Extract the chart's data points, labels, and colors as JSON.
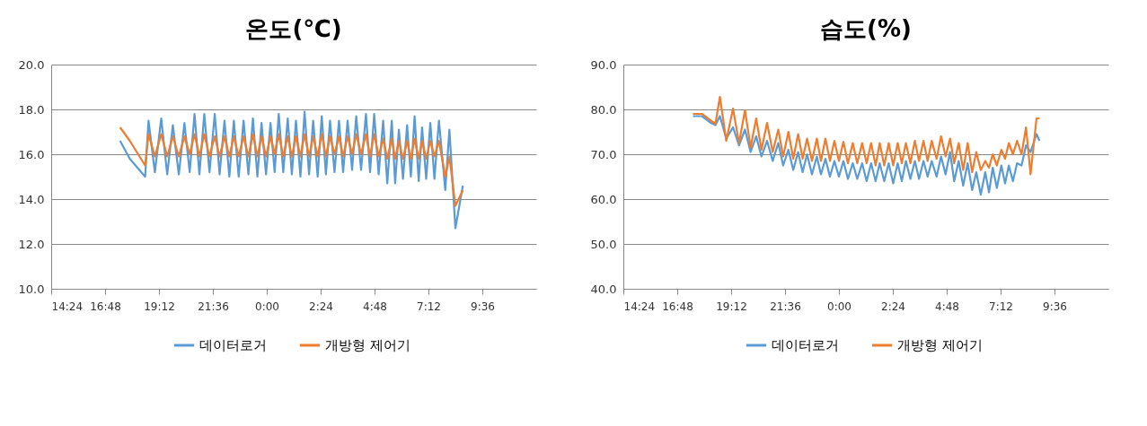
{
  "chart_data": [
    {
      "type": "line",
      "title": "온도(℃)",
      "x": [
        "2000-01-01T17:28",
        "2000-01-01T17:54",
        "2000-01-01T18:35",
        "2000-01-01T18:44",
        "2000-01-01T19:01",
        "2000-01-01T19:18",
        "2000-01-01T19:34",
        "2000-01-01T19:49",
        "2000-01-01T20:05",
        "2000-01-01T20:20",
        "2000-01-01T20:34",
        "2000-01-01T20:47",
        "2000-01-01T21:00",
        "2000-01-01T21:13",
        "2000-01-01T21:27",
        "2000-01-01T21:41",
        "2000-01-01T21:54",
        "2000-01-01T22:07",
        "2000-01-01T22:20",
        "2000-01-01T22:32",
        "2000-01-01T22:45",
        "2000-01-01T22:58",
        "2000-01-01T23:11",
        "2000-01-01T23:23",
        "2000-01-01T23:35",
        "2000-01-01T23:46",
        "2000-01-01T23:58",
        "2000-01-02T00:10",
        "2000-01-02T00:21",
        "2000-01-02T00:32",
        "2000-01-02T00:44",
        "2000-01-02T00:56",
        "2000-01-02T01:07",
        "2000-01-02T01:18",
        "2000-01-02T01:30",
        "2000-01-02T01:41",
        "2000-01-02T01:53",
        "2000-01-02T02:04",
        "2000-01-02T02:16",
        "2000-01-02T02:27",
        "2000-01-02T02:38",
        "2000-01-02T02:49",
        "2000-01-02T03:01",
        "2000-01-02T03:13",
        "2000-01-02T03:24",
        "2000-01-02T03:36",
        "2000-01-02T03:48",
        "2000-01-02T03:59",
        "2000-01-02T04:12",
        "2000-01-02T04:25",
        "2000-01-02T04:36",
        "2000-01-02T04:47",
        "2000-01-02T04:59",
        "2000-01-02T05:11",
        "2000-01-02T05:22",
        "2000-01-02T05:34",
        "2000-01-02T05:43",
        "2000-01-02T05:53",
        "2000-01-02T06:04",
        "2000-01-02T06:15",
        "2000-01-02T06:25",
        "2000-01-02T06:35",
        "2000-01-02T06:46",
        "2000-01-02T06:55",
        "2000-01-02T07:06",
        "2000-01-02T07:17",
        "2000-01-02T07:28",
        "2000-01-02T07:40",
        "2000-01-02T07:57",
        "2000-01-02T08:08",
        "2000-01-02T08:24",
        "2000-01-02T08:44"
      ],
      "series": [
        {
          "name": "데이터로거",
          "color": "#5b9bd5",
          "values": [
            16.6,
            15.8,
            15.0,
            17.5,
            15.2,
            17.6,
            15.1,
            17.3,
            15.1,
            17.4,
            15.2,
            17.8,
            15.1,
            17.8,
            15.2,
            17.8,
            15.1,
            17.5,
            15.0,
            17.5,
            15.0,
            17.5,
            15.1,
            17.6,
            15.0,
            17.4,
            15.1,
            17.4,
            15.2,
            17.8,
            15.2,
            17.6,
            15.1,
            17.5,
            15.0,
            17.9,
            15.1,
            17.5,
            15.0,
            17.7,
            15.1,
            17.5,
            15.2,
            17.5,
            15.2,
            17.5,
            15.3,
            17.7,
            15.3,
            17.8,
            15.2,
            17.8,
            15.1,
            17.5,
            14.7,
            17.5,
            14.7,
            17.1,
            14.9,
            17.3,
            15.0,
            17.7,
            14.8,
            17.2,
            14.9,
            17.4,
            14.9,
            17.5,
            14.4,
            17.1,
            12.7,
            14.6
          ]
        },
        {
          "name": "개방형 제어기",
          "color": "#ed7d31",
          "values": [
            17.2,
            16.6,
            15.5,
            16.9,
            15.9,
            16.9,
            15.9,
            16.8,
            15.9,
            16.8,
            16.0,
            16.9,
            15.9,
            16.9,
            15.9,
            16.8,
            15.9,
            16.8,
            15.9,
            16.8,
            15.9,
            16.8,
            15.9,
            16.9,
            15.9,
            16.8,
            15.9,
            16.8,
            16.0,
            16.9,
            15.9,
            16.8,
            15.9,
            16.8,
            15.9,
            16.9,
            15.9,
            16.8,
            15.9,
            16.9,
            15.9,
            16.8,
            16.0,
            16.8,
            15.9,
            16.8,
            16.0,
            16.9,
            16.0,
            16.9,
            15.9,
            16.9,
            15.9,
            16.7,
            15.8,
            16.7,
            15.8,
            16.6,
            15.8,
            16.6,
            15.8,
            16.7,
            15.8,
            16.6,
            15.8,
            16.6,
            15.9,
            16.6,
            15.0,
            15.9,
            13.7,
            14.4
          ]
        }
      ],
      "xlim": [
        "2000-01-01T14:24",
        "2000-01-02T12:00"
      ],
      "xticks": [
        {
          "value": "2000-01-01T14:24",
          "label": "14:24"
        },
        {
          "value": "2000-01-01T16:48",
          "label": "16:48"
        },
        {
          "value": "2000-01-01T19:12",
          "label": "19:12"
        },
        {
          "value": "2000-01-01T21:36",
          "label": "21:36"
        },
        {
          "value": "2000-01-02T00:00",
          "label": "0:00"
        },
        {
          "value": "2000-01-02T02:24",
          "label": "2:24"
        },
        {
          "value": "2000-01-02T04:48",
          "label": "4:48"
        },
        {
          "value": "2000-01-02T07:12",
          "label": "7:12"
        },
        {
          "value": "2000-01-02T09:36",
          "label": "9:36"
        }
      ],
      "ylim": [
        10,
        20
      ],
      "yticks": [
        {
          "value": 10,
          "label": "10.0"
        },
        {
          "value": 12,
          "label": "12.0"
        },
        {
          "value": 14,
          "label": "14.0"
        },
        {
          "value": 16,
          "label": "16.0"
        },
        {
          "value": 18,
          "label": "18.0"
        },
        {
          "value": 20,
          "label": "20.0"
        }
      ],
      "grid": "y",
      "legend": "bottom"
    },
    {
      "type": "line",
      "title": "습도(%)",
      "x": [
        "2000-01-01T17:30",
        "2000-01-01T17:54",
        "2000-01-01T18:18",
        "2000-01-01T18:30",
        "2000-01-01T18:42",
        "2000-01-01T18:59",
        "2000-01-01T19:17",
        "2000-01-01T19:33",
        "2000-01-01T19:49",
        "2000-01-01T20:04",
        "2000-01-01T20:19",
        "2000-01-01T20:33",
        "2000-01-01T20:48",
        "2000-01-01T21:03",
        "2000-01-01T21:18",
        "2000-01-01T21:31",
        "2000-01-01T21:45",
        "2000-01-01T21:58",
        "2000-01-01T22:11",
        "2000-01-01T22:23",
        "2000-01-01T22:35",
        "2000-01-01T22:48",
        "2000-01-01T23:01",
        "2000-01-01T23:12",
        "2000-01-01T23:24",
        "2000-01-01T23:36",
        "2000-01-01T23:48",
        "2000-01-02T00:00",
        "2000-01-02T00:12",
        "2000-01-02T00:24",
        "2000-01-02T00:37",
        "2000-01-02T00:49",
        "2000-01-02T01:02",
        "2000-01-02T01:14",
        "2000-01-02T01:26",
        "2000-01-02T01:38",
        "2000-01-02T01:49",
        "2000-01-02T02:01",
        "2000-01-02T02:13",
        "2000-01-02T02:25",
        "2000-01-02T02:37",
        "2000-01-02T02:48",
        "2000-01-02T02:59",
        "2000-01-02T03:11",
        "2000-01-02T03:23",
        "2000-01-02T03:34",
        "2000-01-02T03:46",
        "2000-01-02T03:57",
        "2000-01-02T04:08",
        "2000-01-02T04:21",
        "2000-01-02T04:33",
        "2000-01-02T04:45",
        "2000-01-02T04:57",
        "2000-01-02T05:08",
        "2000-01-02T05:20",
        "2000-01-02T05:32",
        "2000-01-02T05:44",
        "2000-01-02T05:56",
        "2000-01-02T06:07",
        "2000-01-02T06:19",
        "2000-01-02T06:31",
        "2000-01-02T06:41",
        "2000-01-02T06:51",
        "2000-01-02T07:02",
        "2000-01-02T07:14",
        "2000-01-02T07:24",
        "2000-01-02T07:34",
        "2000-01-02T07:45",
        "2000-01-02T07:56",
        "2000-01-02T08:08",
        "2000-01-02T08:20",
        "2000-01-02T08:32",
        "2000-01-02T08:48",
        "2000-01-02T08:56"
      ],
      "series": [
        {
          "name": "데이터로거",
          "color": "#5b9bd5",
          "values": [
            78.5,
            78.5,
            77.0,
            76.5,
            78.5,
            73.5,
            76.0,
            72.0,
            75.5,
            70.5,
            74.0,
            69.5,
            73.0,
            68.5,
            72.5,
            67.5,
            71.0,
            66.5,
            70.5,
            66.0,
            70.0,
            65.5,
            69.5,
            65.5,
            69.0,
            65.0,
            68.5,
            65.0,
            68.5,
            64.5,
            68.0,
            64.5,
            68.0,
            64.0,
            68.0,
            64.0,
            68.0,
            64.0,
            68.0,
            63.5,
            68.0,
            64.0,
            68.5,
            64.5,
            68.5,
            64.5,
            68.5,
            65.0,
            68.5,
            65.0,
            69.5,
            65.5,
            70.5,
            64.0,
            68.5,
            63.0,
            68.0,
            62.0,
            66.0,
            61.0,
            66.0,
            61.5,
            67.0,
            62.5,
            67.5,
            63.5,
            67.5,
            64.0,
            68.0,
            67.5,
            72.0,
            70.5,
            74.5,
            73.0
          ]
        },
        {
          "name": "개방형 제어기",
          "color": "#ed7d31",
          "values": [
            79.0,
            79.0,
            77.5,
            76.8,
            82.8,
            73.0,
            80.2,
            72.5,
            79.8,
            71.5,
            78.0,
            71.0,
            77.0,
            70.5,
            75.5,
            69.5,
            75.0,
            69.0,
            74.5,
            69.0,
            73.5,
            68.5,
            73.5,
            68.5,
            73.5,
            68.5,
            73.0,
            68.5,
            72.8,
            68.0,
            72.5,
            68.0,
            72.5,
            68.0,
            72.5,
            67.5,
            72.5,
            67.5,
            72.5,
            67.5,
            72.5,
            68.0,
            72.5,
            68.0,
            73.0,
            68.5,
            73.0,
            68.5,
            73.0,
            69.0,
            74.0,
            69.5,
            73.5,
            68.0,
            72.5,
            66.5,
            72.5,
            66.0,
            70.5,
            66.5,
            68.5,
            67.0,
            70.0,
            67.5,
            71.0,
            69.0,
            72.5,
            70.0,
            73.0,
            70.0,
            76.0,
            65.5,
            78.0,
            78.0
          ]
        }
      ],
      "xlim": [
        "2000-01-01T14:24",
        "2000-01-02T12:00"
      ],
      "xticks": [
        {
          "value": "2000-01-01T14:24",
          "label": "14:24"
        },
        {
          "value": "2000-01-01T16:48",
          "label": "16:48"
        },
        {
          "value": "2000-01-01T19:12",
          "label": "19:12"
        },
        {
          "value": "2000-01-01T21:36",
          "label": "21:36"
        },
        {
          "value": "2000-01-02T00:00",
          "label": "0:00"
        },
        {
          "value": "2000-01-02T02:24",
          "label": "2:24"
        },
        {
          "value": "2000-01-02T04:48",
          "label": "4:48"
        },
        {
          "value": "2000-01-02T07:12",
          "label": "7:12"
        },
        {
          "value": "2000-01-02T09:36",
          "label": "9:36"
        }
      ],
      "ylim": [
        40,
        90
      ],
      "yticks": [
        {
          "value": 40,
          "label": "40.0"
        },
        {
          "value": 50,
          "label": "50.0"
        },
        {
          "value": 60,
          "label": "60.0"
        },
        {
          "value": 70,
          "label": "70.0"
        },
        {
          "value": 80,
          "label": "80.0"
        },
        {
          "value": 90,
          "label": "90.0"
        }
      ],
      "grid": "y",
      "legend": "bottom"
    }
  ]
}
